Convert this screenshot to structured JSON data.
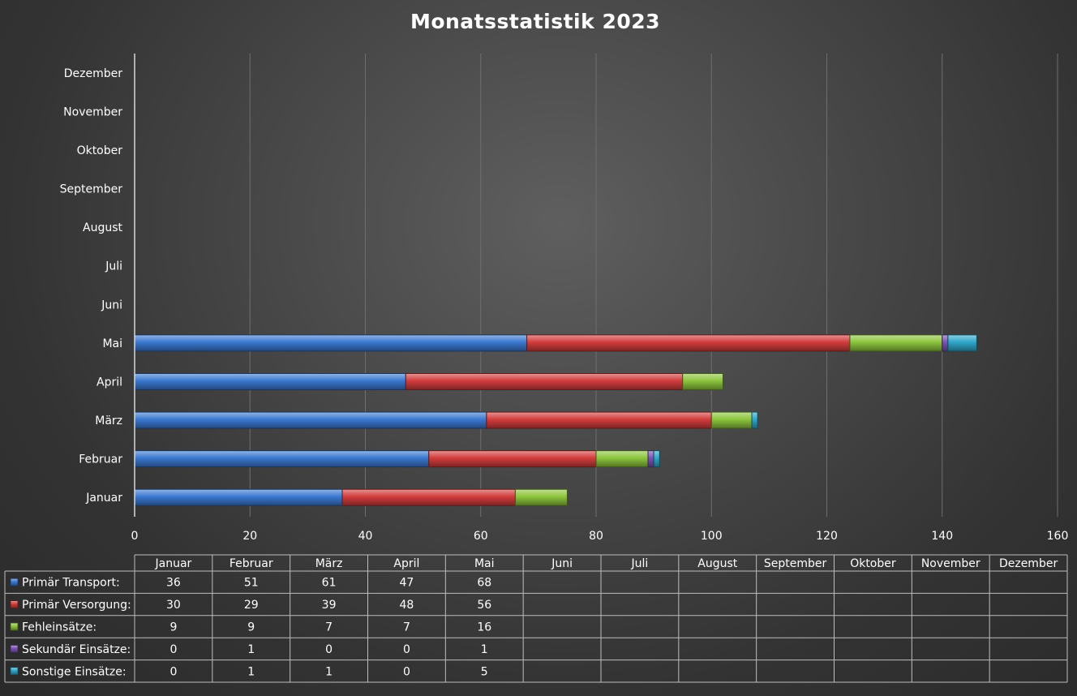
{
  "chart_data": {
    "type": "bar",
    "orientation": "horizontal",
    "stacked": true,
    "title": "Monatsstatistik 2023",
    "categories": [
      "Januar",
      "Februar",
      "März",
      "April",
      "Mai",
      "Juni",
      "Juli",
      "August",
      "September",
      "Oktober",
      "November",
      "Dezember"
    ],
    "xlim": [
      0,
      160
    ],
    "x_ticks": [
      0,
      20,
      40,
      60,
      80,
      100,
      120,
      140,
      160
    ],
    "grid": true,
    "data_table": true,
    "series": [
      {
        "name": "Primär Transport:",
        "color": "#3a78d0",
        "values": [
          36,
          51,
          61,
          47,
          68,
          null,
          null,
          null,
          null,
          null,
          null,
          null
        ]
      },
      {
        "name": "Primär Versorgung:",
        "color": "#d23c3c",
        "values": [
          30,
          29,
          39,
          48,
          56,
          null,
          null,
          null,
          null,
          null,
          null,
          null
        ]
      },
      {
        "name": "Fehleinsätze:",
        "color": "#8cc43c",
        "values": [
          9,
          9,
          7,
          7,
          16,
          null,
          null,
          null,
          null,
          null,
          null,
          null
        ]
      },
      {
        "name": "Sekundär Einsätze:",
        "color": "#7a52b4",
        "values": [
          0,
          1,
          0,
          0,
          1,
          null,
          null,
          null,
          null,
          null,
          null,
          null
        ]
      },
      {
        "name": "Sonstige Einsätze:",
        "color": "#2ea6c8",
        "values": [
          0,
          1,
          1,
          0,
          5,
          null,
          null,
          null,
          null,
          null,
          null,
          null
        ]
      }
    ]
  }
}
